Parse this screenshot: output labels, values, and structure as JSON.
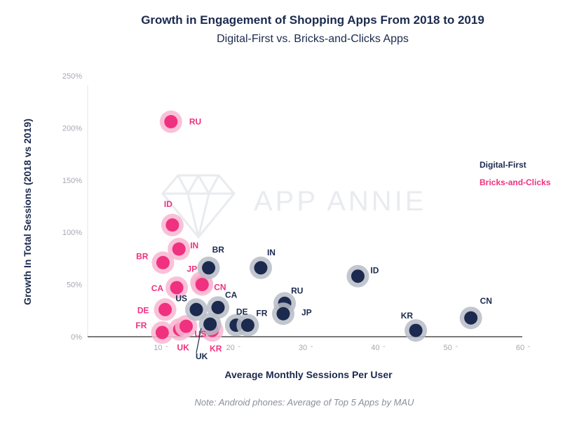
{
  "chart_data": {
    "type": "scatter",
    "title": "Growth in Engagement of Shopping Apps From 2018 to 2019",
    "subtitle": "Digital-First vs. Bricks-and-Clicks Apps",
    "xlabel": "Average Monthly Sessions Per User",
    "ylabel": "Growth In Total Sessions (2018 vs 2019)",
    "note": "Note: Android phones: Average of Top 5 Apps by MAU",
    "watermark": "APP ANNIE",
    "xlim": [
      0,
      60
    ],
    "ylim": [
      0,
      250
    ],
    "x_ticks": [
      {
        "value": 10,
        "label": "10"
      },
      {
        "value": 20,
        "label": "20"
      },
      {
        "value": 30,
        "label": "30"
      },
      {
        "value": 40,
        "label": "40"
      },
      {
        "value": 50,
        "label": "50"
      },
      {
        "value": 60,
        "label": "60"
      }
    ],
    "y_ticks": [
      {
        "value": 0,
        "label": "0%"
      },
      {
        "value": 50,
        "label": "50%"
      },
      {
        "value": 100,
        "label": "100%"
      },
      {
        "value": 150,
        "label": "150%"
      },
      {
        "value": 200,
        "label": "200%"
      },
      {
        "value": 250,
        "label": "250%"
      }
    ],
    "grid": false,
    "legend_position": "right",
    "series": [
      {
        "name": "Digital-First",
        "color": "#1b2a4e",
        "halo_color": "#b7bcc6",
        "points": [
          {
            "label": "BR",
            "x": 16.7,
            "y": 66
          },
          {
            "label": "IN",
            "x": 23.9,
            "y": 66
          },
          {
            "label": "ID",
            "x": 37.3,
            "y": 58
          },
          {
            "label": "RU",
            "x": 27.2,
            "y": 32
          },
          {
            "label": "JP",
            "x": 27.0,
            "y": 22
          },
          {
            "label": "CA",
            "x": 18.0,
            "y": 28
          },
          {
            "label": "US",
            "x": 15.0,
            "y": 26
          },
          {
            "label": "DE",
            "x": 20.5,
            "y": 11
          },
          {
            "label": "FR",
            "x": 22.1,
            "y": 11
          },
          {
            "label": "UK",
            "x": 16.9,
            "y": 12
          },
          {
            "label": "KR",
            "x": 45.3,
            "y": 6
          },
          {
            "label": "CN",
            "x": 52.9,
            "y": 18
          }
        ]
      },
      {
        "name": "Bricks-and-Clicks",
        "color": "#f0317f",
        "halo_color": "#f8b6d1",
        "points": [
          {
            "label": "RU",
            "x": 11.5,
            "y": 206
          },
          {
            "label": "ID",
            "x": 11.7,
            "y": 107
          },
          {
            "label": "IN",
            "x": 12.6,
            "y": 84
          },
          {
            "label": "BR",
            "x": 10.4,
            "y": 71
          },
          {
            "label": "JP",
            "x": 15.7,
            "y": 52
          },
          {
            "label": "CN",
            "x": 15.8,
            "y": 50
          },
          {
            "label": "CA",
            "x": 12.3,
            "y": 47
          },
          {
            "label": "DE",
            "x": 10.7,
            "y": 26
          },
          {
            "label": "FR",
            "x": 10.3,
            "y": 4
          },
          {
            "label": "UK",
            "x": 12.7,
            "y": 7
          },
          {
            "label": "US",
            "x": 13.6,
            "y": 10
          },
          {
            "label": "KR",
            "x": 17.2,
            "y": 6
          }
        ]
      }
    ]
  }
}
